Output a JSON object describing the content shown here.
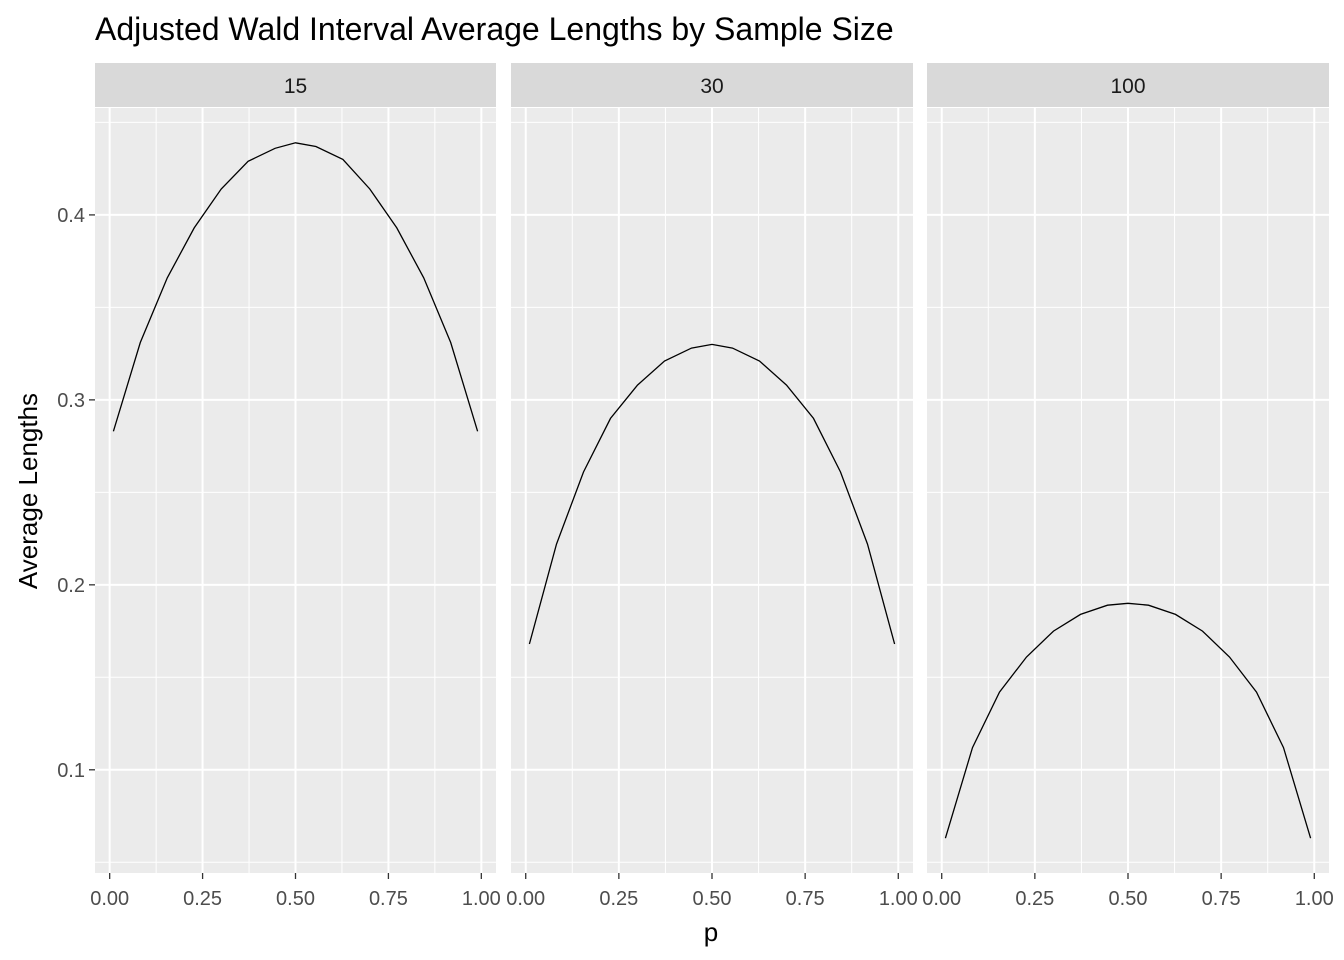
{
  "chart_data": {
    "type": "line",
    "title": "Adjusted Wald Interval Average Lengths by Sample Size",
    "xlabel": "p",
    "ylabel": "Average Lengths",
    "facets": [
      "15",
      "30",
      "100"
    ],
    "x": [
      0.01,
      0.0825,
      0.155,
      0.2275,
      0.3,
      0.3725,
      0.445,
      0.5,
      0.555,
      0.6275,
      0.7,
      0.7725,
      0.845,
      0.9175,
      0.99
    ],
    "series": [
      {
        "facet": "15",
        "values": [
          0.283,
          0.331,
          0.366,
          0.393,
          0.414,
          0.429,
          0.436,
          0.439,
          0.437,
          0.43,
          0.414,
          0.393,
          0.366,
          0.331,
          0.283
        ]
      },
      {
        "facet": "30",
        "values": [
          0.168,
          0.222,
          0.261,
          0.29,
          0.308,
          0.321,
          0.328,
          0.33,
          0.328,
          0.321,
          0.308,
          0.29,
          0.261,
          0.222,
          0.168
        ]
      },
      {
        "facet": "100",
        "values": [
          0.063,
          0.112,
          0.142,
          0.161,
          0.175,
          0.184,
          0.189,
          0.19,
          0.189,
          0.184,
          0.175,
          0.161,
          0.142,
          0.112,
          0.063
        ]
      }
    ],
    "xlim": [
      -0.0395,
      1.0395
    ],
    "ylim": [
      0.0442,
      0.4578
    ],
    "xticks": [
      0,
      0.25,
      0.5,
      0.75,
      1
    ],
    "xtick_labels": [
      "0.00",
      "0.25",
      "0.50",
      "0.75",
      "1.00"
    ],
    "yticks": [
      0.1,
      0.2,
      0.3,
      0.4
    ],
    "ytick_labels": [
      "0.1",
      "0.2",
      "0.3",
      "0.4"
    ],
    "grid": true,
    "legend": "none",
    "colors": {
      "panel_bg": "#EBEBEB",
      "strip_bg": "#D9D9D9",
      "grid": "#FFFFFF",
      "line": "#000000",
      "tick_text": "#4D4D4D"
    }
  }
}
